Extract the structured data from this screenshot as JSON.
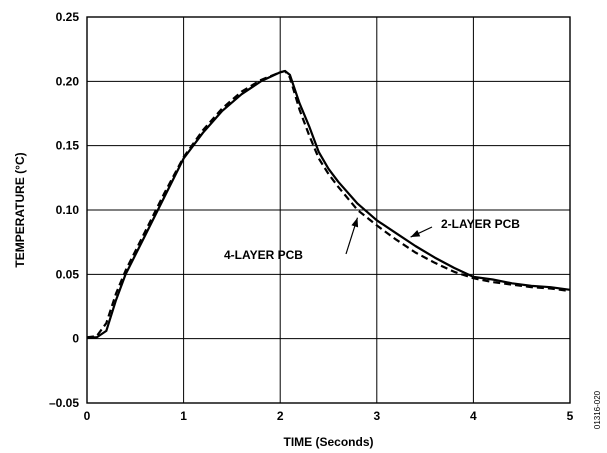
{
  "chart_data": {
    "type": "line",
    "title": "",
    "xlabel": "TIME (Seconds)",
    "ylabel": "TEMPERATURE (°C)",
    "xlim": [
      0,
      5
    ],
    "ylim": [
      -0.05,
      0.25
    ],
    "xticks": [
      0,
      1,
      2,
      3,
      4,
      5
    ],
    "xtick_labels": [
      "0",
      "1",
      "2",
      "3",
      "4",
      "5"
    ],
    "yticks": [
      -0.05,
      0,
      0.05,
      0.1,
      0.15,
      0.2,
      0.25
    ],
    "ytick_labels": [
      "–0.05",
      "0",
      "0.05",
      "0.10",
      "0.15",
      "0.20",
      "0.25"
    ],
    "grid": true,
    "series": [
      {
        "name": "2-LAYER PCB",
        "style": "solid",
        "color": "#000000",
        "x": [
          0,
          0.1,
          0.2,
          0.3,
          0.4,
          0.6,
          0.8,
          1.0,
          1.2,
          1.4,
          1.6,
          1.8,
          2.0,
          2.05,
          2.1,
          2.2,
          2.3,
          2.4,
          2.5,
          2.6,
          2.8,
          3.0,
          3.2,
          3.4,
          3.6,
          3.8,
          4.0,
          4.2,
          4.4,
          4.6,
          4.8,
          5.0
        ],
        "y": [
          0.001,
          0.001,
          0.006,
          0.03,
          0.05,
          0.08,
          0.11,
          0.14,
          0.16,
          0.177,
          0.19,
          0.2,
          0.207,
          0.208,
          0.205,
          0.183,
          0.165,
          0.145,
          0.132,
          0.122,
          0.105,
          0.092,
          0.082,
          0.072,
          0.063,
          0.055,
          0.048,
          0.046,
          0.043,
          0.041,
          0.04,
          0.038
        ]
      },
      {
        "name": "4-LAYER PCB",
        "style": "dashed",
        "color": "#000000",
        "x": [
          0,
          0.1,
          0.2,
          0.3,
          0.4,
          0.6,
          0.8,
          1.0,
          1.2,
          1.4,
          1.6,
          1.8,
          2.0,
          2.05,
          2.1,
          2.2,
          2.3,
          2.4,
          2.5,
          2.6,
          2.8,
          3.0,
          3.2,
          3.4,
          3.6,
          3.8,
          4.0,
          4.2,
          4.4,
          4.6,
          4.8,
          5.0
        ],
        "y": [
          0.001,
          0.002,
          0.012,
          0.035,
          0.053,
          0.083,
          0.113,
          0.141,
          0.162,
          0.179,
          0.192,
          0.201,
          0.207,
          0.208,
          0.203,
          0.178,
          0.158,
          0.14,
          0.128,
          0.118,
          0.1,
          0.088,
          0.077,
          0.067,
          0.059,
          0.052,
          0.047,
          0.044,
          0.042,
          0.04,
          0.039,
          0.037
        ]
      }
    ],
    "annotations": [
      {
        "text": "2-LAYER PCB",
        "points_to": {
          "x": 3.35,
          "y": 0.079
        }
      },
      {
        "text": "4-LAYER PCB",
        "points_to": {
          "x": 2.8,
          "y": 0.094
        }
      }
    ],
    "figure_id": "01316-020"
  }
}
